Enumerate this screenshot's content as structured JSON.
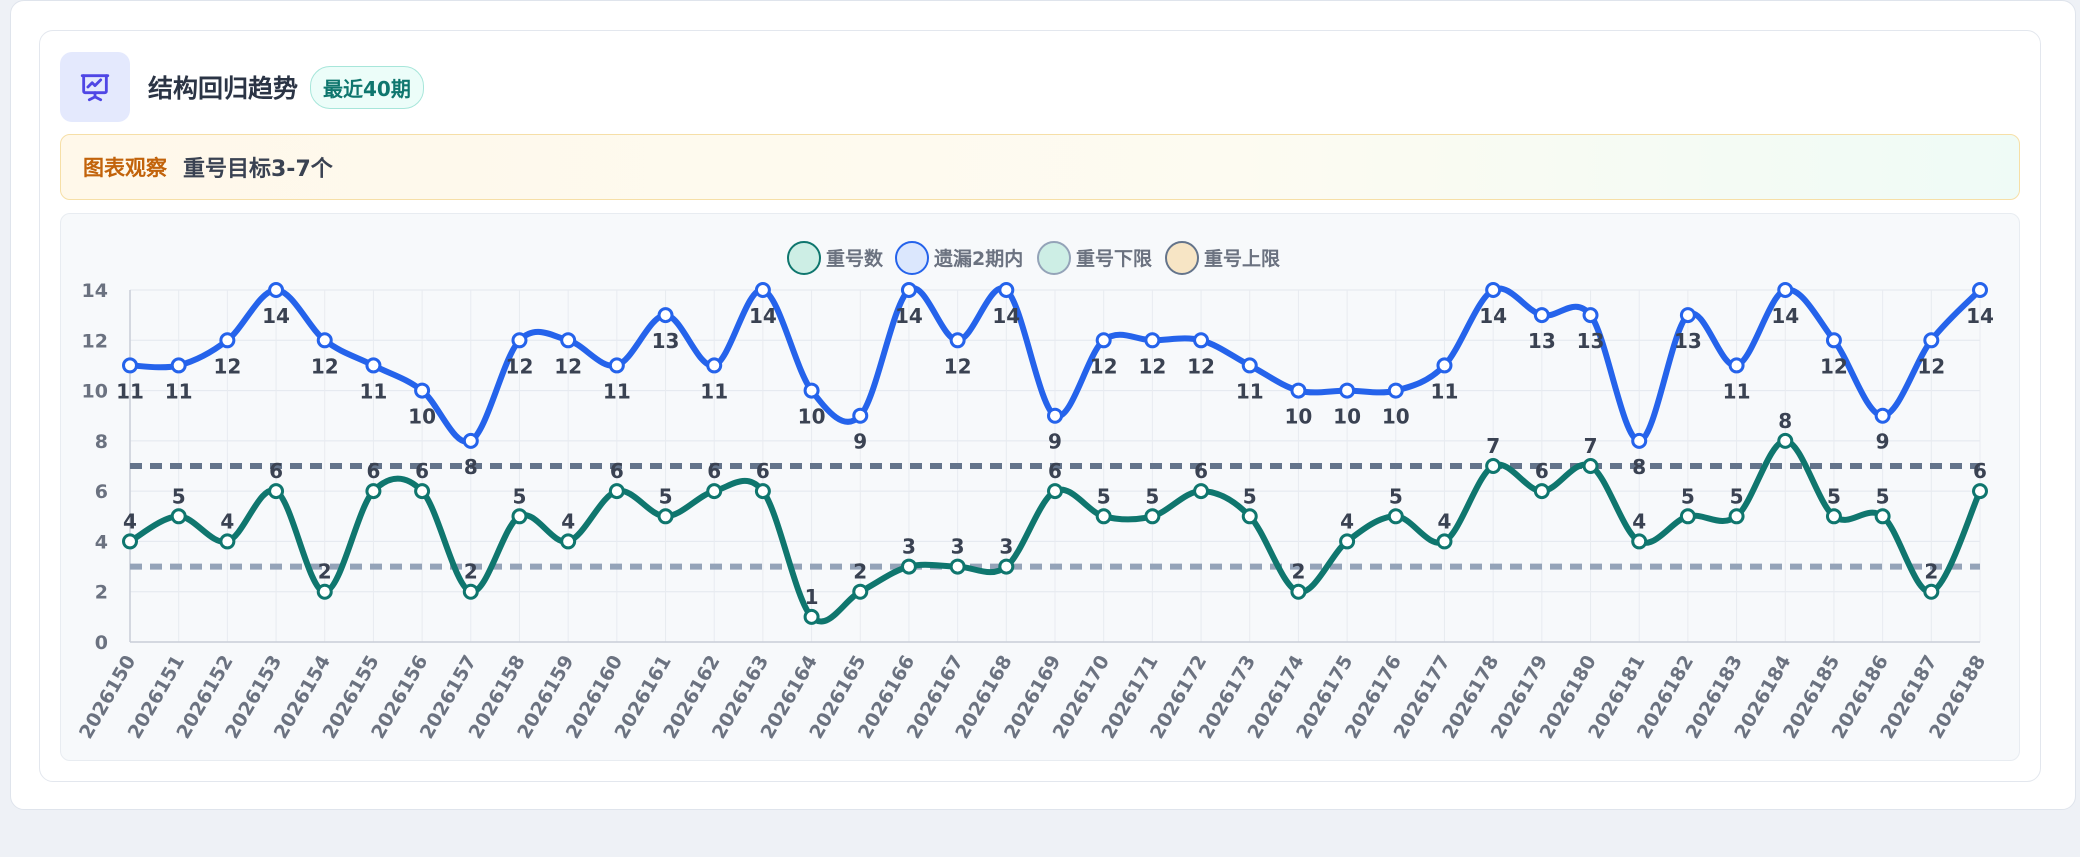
{
  "card": {
    "title": "结构回归趋势",
    "badge": "最近40期",
    "notice_label": "图表观察",
    "notice_text": "重号目标3-7个"
  },
  "icons": {
    "header_icon": "presentation-chart-icon"
  },
  "colors": {
    "repeat": "#0f766e",
    "missing": "#2563eb",
    "lower": "#94a3b8",
    "upper": "#64748b"
  },
  "chart_data": {
    "type": "line",
    "x": [
      "2026150",
      "2026151",
      "2026152",
      "2026153",
      "2026154",
      "2026155",
      "2026156",
      "2026157",
      "2026158",
      "2026159",
      "2026160",
      "2026161",
      "2026162",
      "2026163",
      "2026164",
      "2026165",
      "2026166",
      "2026167",
      "2026168",
      "2026169",
      "2026170",
      "2026171",
      "2026172",
      "2026173",
      "2026174",
      "2026175",
      "2026176",
      "2026177",
      "2026178",
      "2026179",
      "2026180",
      "2026181",
      "2026182",
      "2026183",
      "2026184",
      "2026185",
      "2026186",
      "2026187",
      "2026188"
    ],
    "series": [
      {
        "name": "重号数",
        "values": [
          4,
          5,
          4,
          6,
          2,
          6,
          6,
          2,
          5,
          4,
          6,
          5,
          6,
          6,
          1,
          2,
          3,
          3,
          3,
          6,
          5,
          5,
          6,
          5,
          2,
          4,
          5,
          4,
          7,
          6,
          7,
          4,
          5,
          5,
          8,
          5,
          5,
          2,
          6
        ]
      },
      {
        "name": "遗漏2期内",
        "values": [
          11,
          11,
          12,
          14,
          12,
          11,
          10,
          8,
          12,
          12,
          11,
          13,
          11,
          14,
          10,
          9,
          14,
          12,
          14,
          9,
          12,
          12,
          12,
          11,
          10,
          10,
          10,
          11,
          14,
          13,
          13,
          8,
          13,
          11,
          14,
          12,
          9,
          12,
          14
        ]
      },
      {
        "name": "重号下限",
        "value": 3
      },
      {
        "name": "重号上限",
        "value": 7
      }
    ],
    "yticks": [
      0,
      2,
      4,
      6,
      8,
      10,
      12,
      14
    ],
    "ylim": [
      0,
      14
    ],
    "grid": true,
    "legend_position": "top-center"
  }
}
